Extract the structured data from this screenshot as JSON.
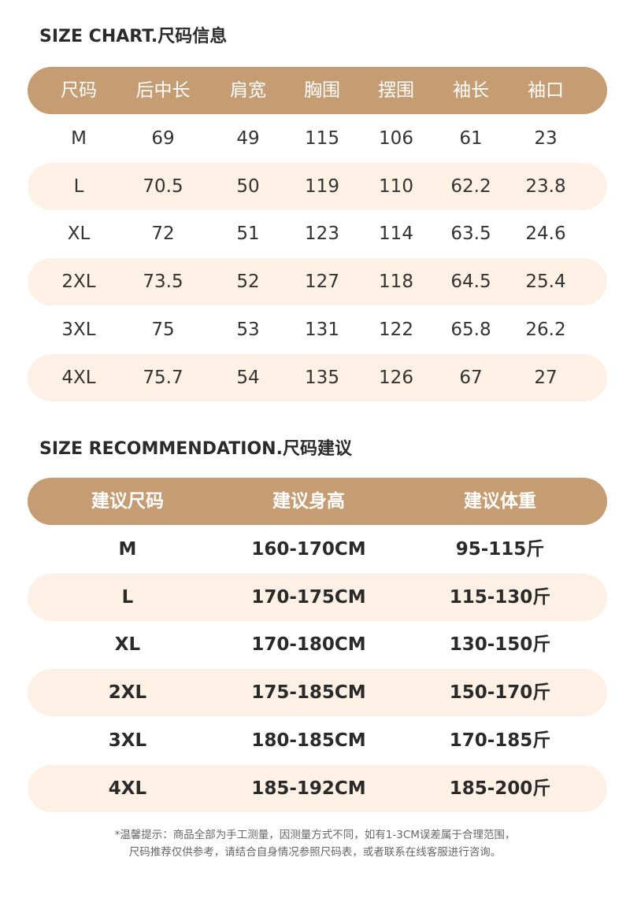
{
  "size_chart": {
    "title": "SIZE CHART.尺码信息",
    "headers": [
      "尺码",
      "后中长",
      "肩宽",
      "胸围",
      "摆围",
      "袖长",
      "袖口"
    ],
    "rows": [
      [
        "M",
        "69",
        "49",
        "115",
        "106",
        "61",
        "23"
      ],
      [
        "L",
        "70.5",
        "50",
        "119",
        "110",
        "62.2",
        "23.8"
      ],
      [
        "XL",
        "72",
        "51",
        "123",
        "114",
        "63.5",
        "24.6"
      ],
      [
        "2XL",
        "73.5",
        "52",
        "127",
        "118",
        "64.5",
        "25.4"
      ],
      [
        "3XL",
        "75",
        "53",
        "131",
        "122",
        "65.8",
        "26.2"
      ],
      [
        "4XL",
        "75.7",
        "54",
        "135",
        "126",
        "67",
        "27"
      ]
    ]
  },
  "size_recommendation": {
    "title": "SIZE RECOMMENDATION.尺码建议",
    "headers": [
      "建议尺码",
      "建议身高",
      "建议体重"
    ],
    "rows": [
      [
        "M",
        "160-170CM",
        "95-115斤"
      ],
      [
        "L",
        "170-175CM",
        "115-130斤"
      ],
      [
        "XL",
        "170-180CM",
        "130-150斤"
      ],
      [
        "2XL",
        "175-185CM",
        "150-170斤"
      ],
      [
        "3XL",
        "180-185CM",
        "170-185斤"
      ],
      [
        "4XL",
        "185-192CM",
        "185-200斤"
      ]
    ]
  },
  "footnote": {
    "line1": "*温馨提示：商品全部为手工测量，因测量方式不同，如有1-3CM误差属于合理范围，",
    "line2": "尺码推荐仅供参考，请结合自身情况参照尺码表，或者联系在线客服进行咨询。"
  },
  "colors": {
    "header_bg": "#c69c72",
    "stripe_bg": "#fdf1e6",
    "text": "#2a2a2a"
  }
}
